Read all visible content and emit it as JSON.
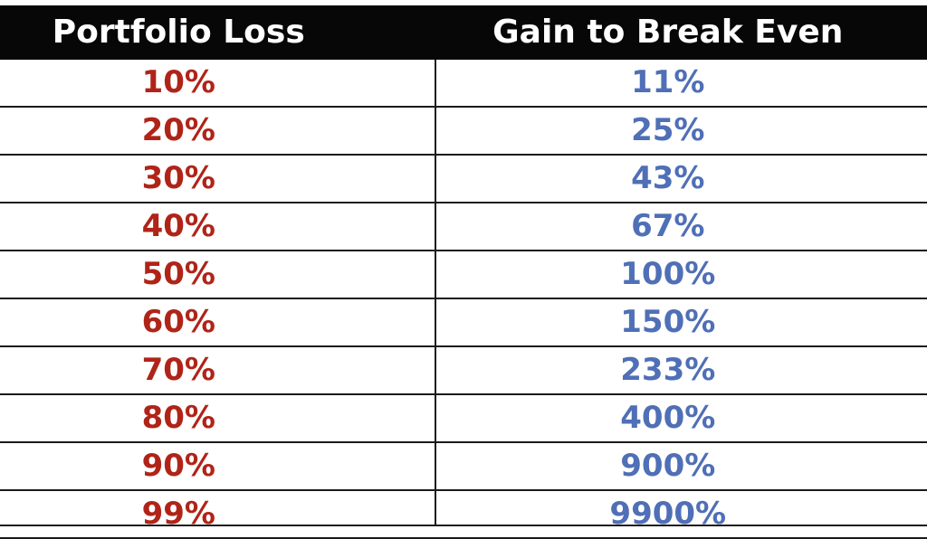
{
  "chart_data": {
    "type": "table",
    "columns": [
      "Portfolio Loss",
      "Gain to Break Even"
    ],
    "rows": [
      {
        "loss": "10%",
        "gain": "11%"
      },
      {
        "loss": "20%",
        "gain": "25%"
      },
      {
        "loss": "30%",
        "gain": "43%"
      },
      {
        "loss": "40%",
        "gain": "67%"
      },
      {
        "loss": "50%",
        "gain": "100%"
      },
      {
        "loss": "60%",
        "gain": "150%"
      },
      {
        "loss": "70%",
        "gain": "233%"
      },
      {
        "loss": "80%",
        "gain": "400%"
      },
      {
        "loss": "90%",
        "gain": "900%"
      },
      {
        "loss": "99%",
        "gain": "9900%"
      }
    ],
    "colors": {
      "header_bg": "#070707",
      "header_text": "#ffffff",
      "loss_text": "#b02418",
      "gain_text": "#4f6fb6",
      "grid": "#1a1a1a"
    }
  }
}
